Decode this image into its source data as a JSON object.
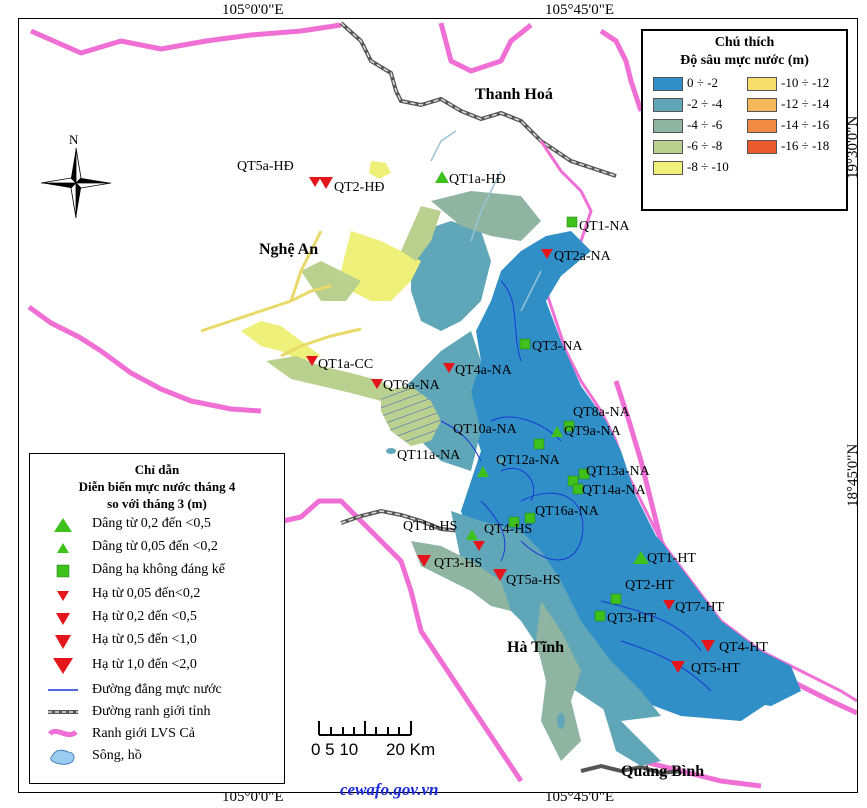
{
  "coords": {
    "top_left": "105°0'0\"E",
    "top_right": "105°45'0\"E",
    "bottom_left": "105°0'0\"E",
    "bottom_right": "105°45'0\"E",
    "right_top": "19°30'0\"N",
    "right_bottom": "18°45'0\"N"
  },
  "places": {
    "thanh_hoa": "Thanh Hoá",
    "nghe_an": "Nghệ An",
    "ha_tinh": "Hà Tĩnh",
    "quang_binh": "Quảng Bình"
  },
  "north_label": "N",
  "website": "cewafo.gov.vn",
  "depth_legend": {
    "title1": "Chú thích",
    "title2": "Độ sâu mực nước (m)",
    "items": [
      {
        "label": "0 ÷ -2",
        "color": "#2f8fc6"
      },
      {
        "label": "-2 ÷ -4",
        "color": "#5fa6b9"
      },
      {
        "label": "-4 ÷ -6",
        "color": "#8fb5a2"
      },
      {
        "label": "-6 ÷ -8",
        "color": "#b9d08f"
      },
      {
        "label": "-8 ÷ -10",
        "color": "#eef07a"
      },
      {
        "label": "-10 ÷ -12",
        "color": "#f7de6a"
      },
      {
        "label": "-12 ÷ -14",
        "color": "#f6b95a"
      },
      {
        "label": "-14 ÷ -16",
        "color": "#f28a44"
      },
      {
        "label": "-16 ÷ -18",
        "color": "#ea5a2e"
      }
    ]
  },
  "guide_legend": {
    "title1": "Chỉ dẫn",
    "title2": "Diễn biến mực nước tháng 4",
    "title3": "so với tháng 3 (m)",
    "items": [
      {
        "label": "Dâng từ 0,2 đến <0,5",
        "symbol": "triangle-up-large"
      },
      {
        "label": "Dâng từ 0,05 đến <0,2",
        "symbol": "triangle-up-small"
      },
      {
        "label": "Dâng hạ không đáng kể",
        "symbol": "square"
      },
      {
        "label": "Hạ từ 0,05 đến<0,2",
        "symbol": "triangle-down-small"
      },
      {
        "label": "Hạ từ 0,2 đến <0,5",
        "symbol": "triangle-down-medium"
      },
      {
        "label": "Hạ từ 0,5 đến <1,0",
        "symbol": "triangle-down-large"
      },
      {
        "label": "Hạ từ 1,0 đến <2,0",
        "symbol": "triangle-down-xlarge"
      },
      {
        "label": "Đường đẳng mực nước",
        "symbol": "blue-line"
      },
      {
        "label": "Đường ranh giới tỉnh",
        "symbol": "grey-dash-line"
      },
      {
        "label": "Ranh giới LVS Cả",
        "symbol": "pink-line"
      },
      {
        "label": "Sông, hồ",
        "symbol": "lake-icon"
      }
    ],
    "colors": {
      "up": "#3ec21b",
      "down": "#e5161b",
      "contour": "#1a37d6",
      "basin": "#f06fd5"
    }
  },
  "scale": {
    "ticks": "0 5 10",
    "end": "20 Km"
  },
  "wells": [
    {
      "id": "QT5a-HĐ",
      "type": "down"
    },
    {
      "id": "QT2-HĐ",
      "type": "down"
    },
    {
      "id": "QT1a-HĐ",
      "type": "up"
    },
    {
      "id": "QT1-NA",
      "type": "flat"
    },
    {
      "id": "QT2a-NA",
      "type": "down"
    },
    {
      "id": "QT3-NA",
      "type": "flat"
    },
    {
      "id": "QT1a-CC",
      "type": "down"
    },
    {
      "id": "QT4a-NA",
      "type": "down"
    },
    {
      "id": "QT6a-NA",
      "type": "down"
    },
    {
      "id": "QT8a-NA",
      "type": "flat"
    },
    {
      "id": "QT9a-NA",
      "type": "up"
    },
    {
      "id": "QT10a-NA",
      "type": "flat"
    },
    {
      "id": "QT11a-NA",
      "type": "up"
    },
    {
      "id": "QT12a-NA",
      "type": "flat"
    },
    {
      "id": "QT13a-NA",
      "type": "flat"
    },
    {
      "id": "QT14a-NA",
      "type": "flat"
    },
    {
      "id": "QT16a-NA",
      "type": "flat"
    },
    {
      "id": "QT1a-HS",
      "type": "up"
    },
    {
      "id": "QT4-HS",
      "type": "flat"
    },
    {
      "id": "QT3-HS",
      "type": "down"
    },
    {
      "id": "QT5a-HS",
      "type": "down"
    },
    {
      "id": "QT1-HT",
      "type": "up"
    },
    {
      "id": "QT2-HT",
      "type": "flat"
    },
    {
      "id": "QT3-HT",
      "type": "flat"
    },
    {
      "id": "QT7-HT",
      "type": "down"
    },
    {
      "id": "QT4-HT",
      "type": "down"
    },
    {
      "id": "QT5-HT",
      "type": "down"
    }
  ]
}
